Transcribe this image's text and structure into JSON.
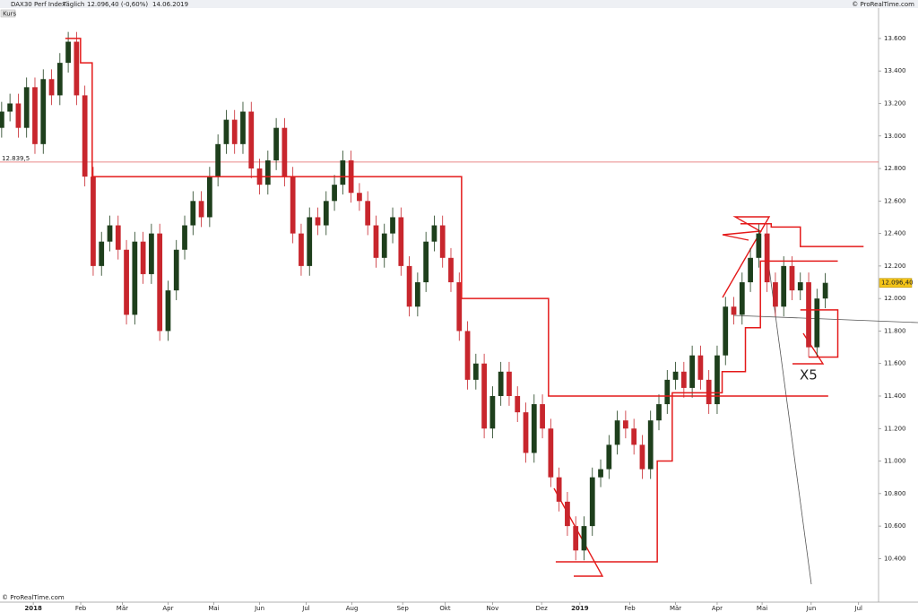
{
  "chart_data": {
    "type": "candlestick",
    "title": "DAX30 Perf Index",
    "period": "Täglich",
    "price": "12.096,40 (-0,60%)",
    "date": "14.06.2019",
    "source": "© ProRealTime.com",
    "panel_label": "Kurs",
    "annotation": "X5",
    "up_color": "#1e3f1c",
    "down_color": "#c8262d",
    "overlay_color": "#e41a1a",
    "categories": [
      null,
      null,
      null,
      null,
      null,
      null,
      null,
      null,
      null,
      null,
      null,
      null,
      null,
      null,
      null,
      null,
      null,
      null,
      null,
      null,
      null,
      null,
      null,
      null,
      null,
      null,
      null,
      null,
      null,
      null,
      null,
      null,
      null,
      null,
      null,
      null,
      null,
      null,
      null,
      null,
      null,
      null,
      null,
      null,
      null,
      null,
      null,
      null,
      null,
      null,
      null,
      null,
      null,
      null,
      null,
      null,
      null,
      null,
      null,
      null,
      null,
      null,
      null,
      null,
      null,
      null,
      null,
      null,
      null,
      null,
      null,
      null,
      null,
      null,
      null,
      null,
      null,
      null,
      null,
      null,
      null,
      null,
      null,
      null,
      null,
      null,
      null,
      null,
      null,
      null,
      null,
      null,
      null,
      null,
      null,
      null,
      null,
      null,
      null,
      null
    ],
    "open": [
      13050,
      13150,
      13200,
      13050,
      13300,
      12950,
      13350,
      13250,
      13450,
      13580,
      13250,
      12750,
      12200,
      12350,
      12450,
      12300,
      11900,
      12350,
      12150,
      12400,
      11800,
      12050,
      12300,
      12450,
      12600,
      12500,
      12750,
      12950,
      13100,
      12950,
      13150,
      12800,
      12700,
      12850,
      13050,
      12750,
      12400,
      12200,
      12500,
      12450,
      12600,
      12700,
      12850,
      12650,
      12600,
      12450,
      12250,
      12400,
      12500,
      12200,
      11950,
      12100,
      12350,
      12450,
      12250,
      12100,
      11800,
      11500,
      11600,
      11200,
      11400,
      11550,
      11400,
      11300,
      11050,
      11350,
      11200,
      10900,
      10750,
      10600,
      10450,
      10600,
      10900,
      10950,
      11100,
      11250,
      11200,
      11100,
      10950,
      11250,
      11350,
      11500,
      11550,
      11450,
      11650,
      11500,
      11350,
      11650,
      11950,
      11900,
      12100,
      12250,
      12400,
      12100,
      11950,
      12200,
      12050,
      12100,
      11700,
      12000
    ],
    "high": [
      13210,
      13260,
      13260,
      13360,
      13360,
      13410,
      13410,
      13510,
      13640,
      13640,
      13310,
      12810,
      12410,
      12510,
      12510,
      12360,
      12410,
      12410,
      12460,
      12460,
      12110,
      12360,
      12510,
      12660,
      12660,
      12810,
      13010,
      13160,
      13160,
      13210,
      13210,
      12860,
      12910,
      13110,
      13110,
      12810,
      12460,
      12560,
      12560,
      12660,
      12760,
      12910,
      12910,
      12710,
      12660,
      12510,
      12460,
      12560,
      12560,
      12260,
      12160,
      12410,
      12510,
      12510,
      12310,
      12160,
      11860,
      11660,
      11660,
      11460,
      11610,
      11610,
      11460,
      11360,
      11410,
      11410,
      11260,
      10960,
      10810,
      10660,
      10660,
      10960,
      11010,
      11160,
      11310,
      11310,
      11260,
      11160,
      11310,
      11410,
      11560,
      11610,
      11610,
      11710,
      11710,
      11560,
      11710,
      12010,
      12010,
      12160,
      12310,
      12460,
      12460,
      12160,
      12260,
      12260,
      12160,
      12160,
      12060,
      12156.4
    ],
    "low": [
      12990,
      13090,
      12990,
      12990,
      12890,
      12890,
      13190,
      13190,
      13390,
      13190,
      12690,
      12140,
      12140,
      12290,
      12240,
      11840,
      11840,
      12090,
      12090,
      11740,
      11740,
      11990,
      12240,
      12390,
      12440,
      12440,
      12690,
      12890,
      12890,
      12890,
      12740,
      12640,
      12640,
      12790,
      12690,
      12340,
      12140,
      12140,
      12390,
      12390,
      12540,
      12640,
      12590,
      12540,
      12390,
      12190,
      12190,
      12340,
      12140,
      11890,
      11890,
      12040,
      12290,
      12190,
      12040,
      11740,
      11440,
      11440,
      11140,
      11140,
      11340,
      11340,
      11240,
      10990,
      10990,
      11140,
      10840,
      10690,
      10540,
      10390,
      10390,
      10540,
      10840,
      10890,
      11040,
      11140,
      11040,
      10890,
      10890,
      11190,
      11290,
      11440,
      11390,
      11390,
      11440,
      11290,
      11290,
      11590,
      11840,
      11840,
      12040,
      12190,
      12040,
      11890,
      11890,
      11990,
      11990,
      11640,
      11640,
      11940
    ],
    "close": [
      13150,
      13200,
      13050,
      13300,
      12950,
      13350,
      13250,
      13450,
      13580,
      13250,
      12750,
      12200,
      12350,
      12450,
      12300,
      11900,
      12350,
      12150,
      12400,
      11800,
      12050,
      12300,
      12450,
      12600,
      12500,
      12750,
      12950,
      13100,
      12950,
      13150,
      12800,
      12700,
      12850,
      13050,
      12750,
      12400,
      12200,
      12500,
      12450,
      12600,
      12700,
      12850,
      12650,
      12600,
      12450,
      12250,
      12400,
      12500,
      12200,
      11950,
      12100,
      12350,
      12450,
      12250,
      12100,
      11800,
      11500,
      11600,
      11200,
      11400,
      11550,
      11400,
      11300,
      11050,
      11350,
      11200,
      10900,
      10750,
      10600,
      10450,
      10600,
      10900,
      10950,
      11100,
      11250,
      11200,
      11100,
      10950,
      11250,
      11350,
      11500,
      11550,
      11450,
      11650,
      11500,
      11350,
      11650,
      11950,
      11900,
      12100,
      12250,
      12400,
      12100,
      11950,
      12200,
      12050,
      12100,
      11700,
      12000,
      12096.4
    ],
    "overlays": [
      {
        "x": [
          7.65,
          9.48,
          9.48,
          10.88,
          10.88,
          55.28,
          55.28,
          65.73,
          65.73,
          99.35
        ],
        "y": [
          13600,
          13600,
          13450,
          13450,
          12750,
          12750,
          12000,
          12000,
          11400,
          11400
        ]
      },
      {
        "x": [
          66.6,
          78.8,
          78.8,
          80.6,
          80.6,
          86.6,
          86.6,
          89.4,
          89.4,
          91.2,
          91.2,
          100.5
        ],
        "y": [
          10380,
          10380,
          11000,
          11000,
          11420,
          11420,
          11550,
          11550,
          11820,
          11820,
          12230,
          12230
        ]
      },
      {
        "x": [
          88.8,
          92.5,
          92.5,
          96.0,
          96.0,
          103.6
        ],
        "y": [
          12460,
          12460,
          12440,
          12440,
          12320,
          12320
        ]
      },
      {
        "x": [
          96.0,
          100.5,
          100.5,
          97.0
        ],
        "y": [
          11930,
          11930,
          11640,
          11640
        ]
      }
    ],
    "level": {
      "value": 12839.5,
      "label": "12.839,5"
    },
    "last": {
      "value": 12096.4,
      "label": "12.096,40"
    },
    "xlim": [
      -0.2,
      105.4
    ],
    "ylim": [
      10132,
      13787
    ],
    "yticks": [
      {
        "value": 10400,
        "label": "10.400"
      },
      {
        "value": 10600,
        "label": "10.600"
      },
      {
        "value": 10800,
        "label": "10.800"
      },
      {
        "value": 11000,
        "label": "11.000"
      },
      {
        "value": 11200,
        "label": "11.200"
      },
      {
        "value": 11400,
        "label": "11.400"
      },
      {
        "value": 11600,
        "label": "11.600"
      },
      {
        "value": 11800,
        "label": "11.800"
      },
      {
        "value": 12000,
        "label": "12.000"
      },
      {
        "value": 12200,
        "label": "12.200"
      },
      {
        "value": 12400,
        "label": "12.400"
      },
      {
        "value": 12600,
        "label": "12.600"
      },
      {
        "value": 12800,
        "label": "12.800"
      },
      {
        "value": 13000,
        "label": "13.000"
      },
      {
        "value": 13200,
        "label": "13.200"
      },
      {
        "value": 13400,
        "label": "13.400"
      },
      {
        "value": 13600,
        "label": "13.600"
      }
    ],
    "xticks": [
      {
        "value": 3.8,
        "label": "2018"
      },
      {
        "value": 9.5,
        "label": "Feb"
      },
      {
        "value": 14.5,
        "label": "Mär"
      },
      {
        "value": 20,
        "label": "Apr"
      },
      {
        "value": 25.5,
        "label": "Mai"
      },
      {
        "value": 31,
        "label": "Jun"
      },
      {
        "value": 36.6,
        "label": "Jul"
      },
      {
        "value": 42.1,
        "label": "Aug"
      },
      {
        "value": 48.2,
        "label": "Sep"
      },
      {
        "value": 53.3,
        "label": "Okt"
      },
      {
        "value": 59,
        "label": "Nov"
      },
      {
        "value": 64.9,
        "label": "Dez"
      },
      {
        "value": 69.5,
        "label": "2019"
      },
      {
        "value": 75.5,
        "label": "Feb"
      },
      {
        "value": 81,
        "label": "Mär"
      },
      {
        "value": 86,
        "label": "Apr"
      },
      {
        "value": 91.4,
        "label": "Mai"
      },
      {
        "value": 97.3,
        "label": "Jun"
      },
      {
        "value": 103,
        "label": "Jul"
      }
    ]
  }
}
